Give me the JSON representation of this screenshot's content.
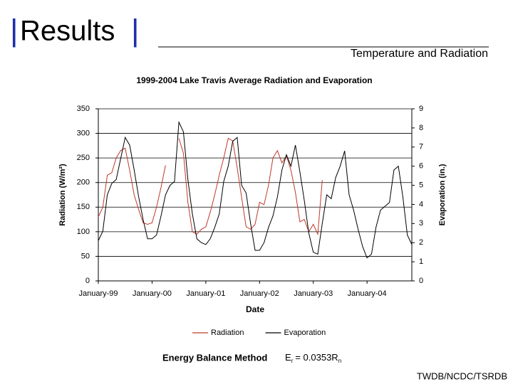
{
  "slide": {
    "title": "Results",
    "subtitle": "Temperature and Radiation",
    "method": "Energy Balance Method",
    "formula": {
      "lhs": "E",
      "lhs_sub": "r",
      "rhs": "= 0.0353R",
      "rhs_sub": "n"
    },
    "footer": "TWDB/NCDC/TSRDB"
  },
  "chart_data": {
    "type": "line",
    "title": "1999-2004 Lake Travis Average Radiation and Evaporation",
    "x_label": "Date",
    "y_label": "Radiation (W/m²)",
    "y2_label": "Evaporation (in.)",
    "categories": [
      "January-99",
      null,
      null,
      null,
      null,
      null,
      null,
      null,
      null,
      null,
      null,
      null,
      "January-00",
      null,
      null,
      null,
      null,
      null,
      null,
      null,
      null,
      null,
      null,
      null,
      "January-01",
      null,
      null,
      null,
      null,
      null,
      null,
      null,
      null,
      null,
      null,
      null,
      "January-02",
      null,
      null,
      null,
      null,
      null,
      null,
      null,
      null,
      null,
      null,
      null,
      "January-03",
      null,
      null,
      null,
      null,
      null,
      null,
      null,
      null,
      null,
      null,
      null,
      "January-04",
      null,
      null,
      null,
      null,
      null,
      null,
      null,
      null,
      null,
      null
    ],
    "series": [
      {
        "name": "Radiation",
        "color": "#c0392b",
        "values": [
          130,
          150,
          215,
          220,
          250,
          265,
          270,
          225,
          175,
          145,
          118,
          115,
          118,
          150,
          190,
          235,
          null,
          null,
          290,
          260,
          160,
          100,
          95,
          105,
          110,
          140,
          175,
          215,
          250,
          290,
          285,
          230,
          170,
          110,
          105,
          115,
          160,
          155,
          195,
          250,
          265,
          240,
          255,
          225,
          180,
          120,
          125,
          100,
          115,
          95,
          205,
          null,
          null,
          null,
          null,
          null,
          null,
          null,
          null,
          null,
          null,
          null,
          null,
          null,
          null,
          null,
          null,
          null,
          null,
          null,
          null
        ]
      },
      {
        "name": "Evaporation",
        "color": "#000000",
        "axis": "y2",
        "values": [
          2.1,
          2.6,
          4.5,
          5.1,
          5.3,
          6.4,
          7.5,
          7.1,
          5.8,
          4.4,
          3.2,
          2.2,
          2.2,
          2.4,
          3.4,
          4.5,
          5.0,
          5.2,
          8.3,
          7.8,
          5.3,
          3.5,
          2.2,
          2.0,
          1.9,
          2.2,
          2.8,
          3.5,
          5.2,
          6.0,
          7.3,
          7.5,
          5.0,
          4.6,
          3.0,
          1.6,
          1.6,
          2.0,
          2.8,
          3.4,
          4.4,
          5.8,
          6.6,
          6.0,
          7.1,
          5.7,
          4.2,
          2.5,
          1.5,
          1.4,
          3.0,
          4.5,
          4.3,
          5.4,
          6.0,
          6.8,
          4.5,
          3.7,
          2.7,
          1.8,
          1.2,
          1.4,
          2.8,
          3.7,
          3.9,
          4.1,
          5.8,
          6.0,
          4.4,
          2.4,
          1.9
        ]
      }
    ],
    "ylim": [
      0,
      350
    ],
    "yticks": [
      0,
      50,
      100,
      150,
      200,
      250,
      300,
      350
    ],
    "y2lim": [
      0,
      9
    ],
    "y2ticks": [
      0,
      1,
      2,
      3,
      4,
      5,
      6,
      7,
      8,
      9
    ],
    "grid": true,
    "legend": "bottom"
  }
}
